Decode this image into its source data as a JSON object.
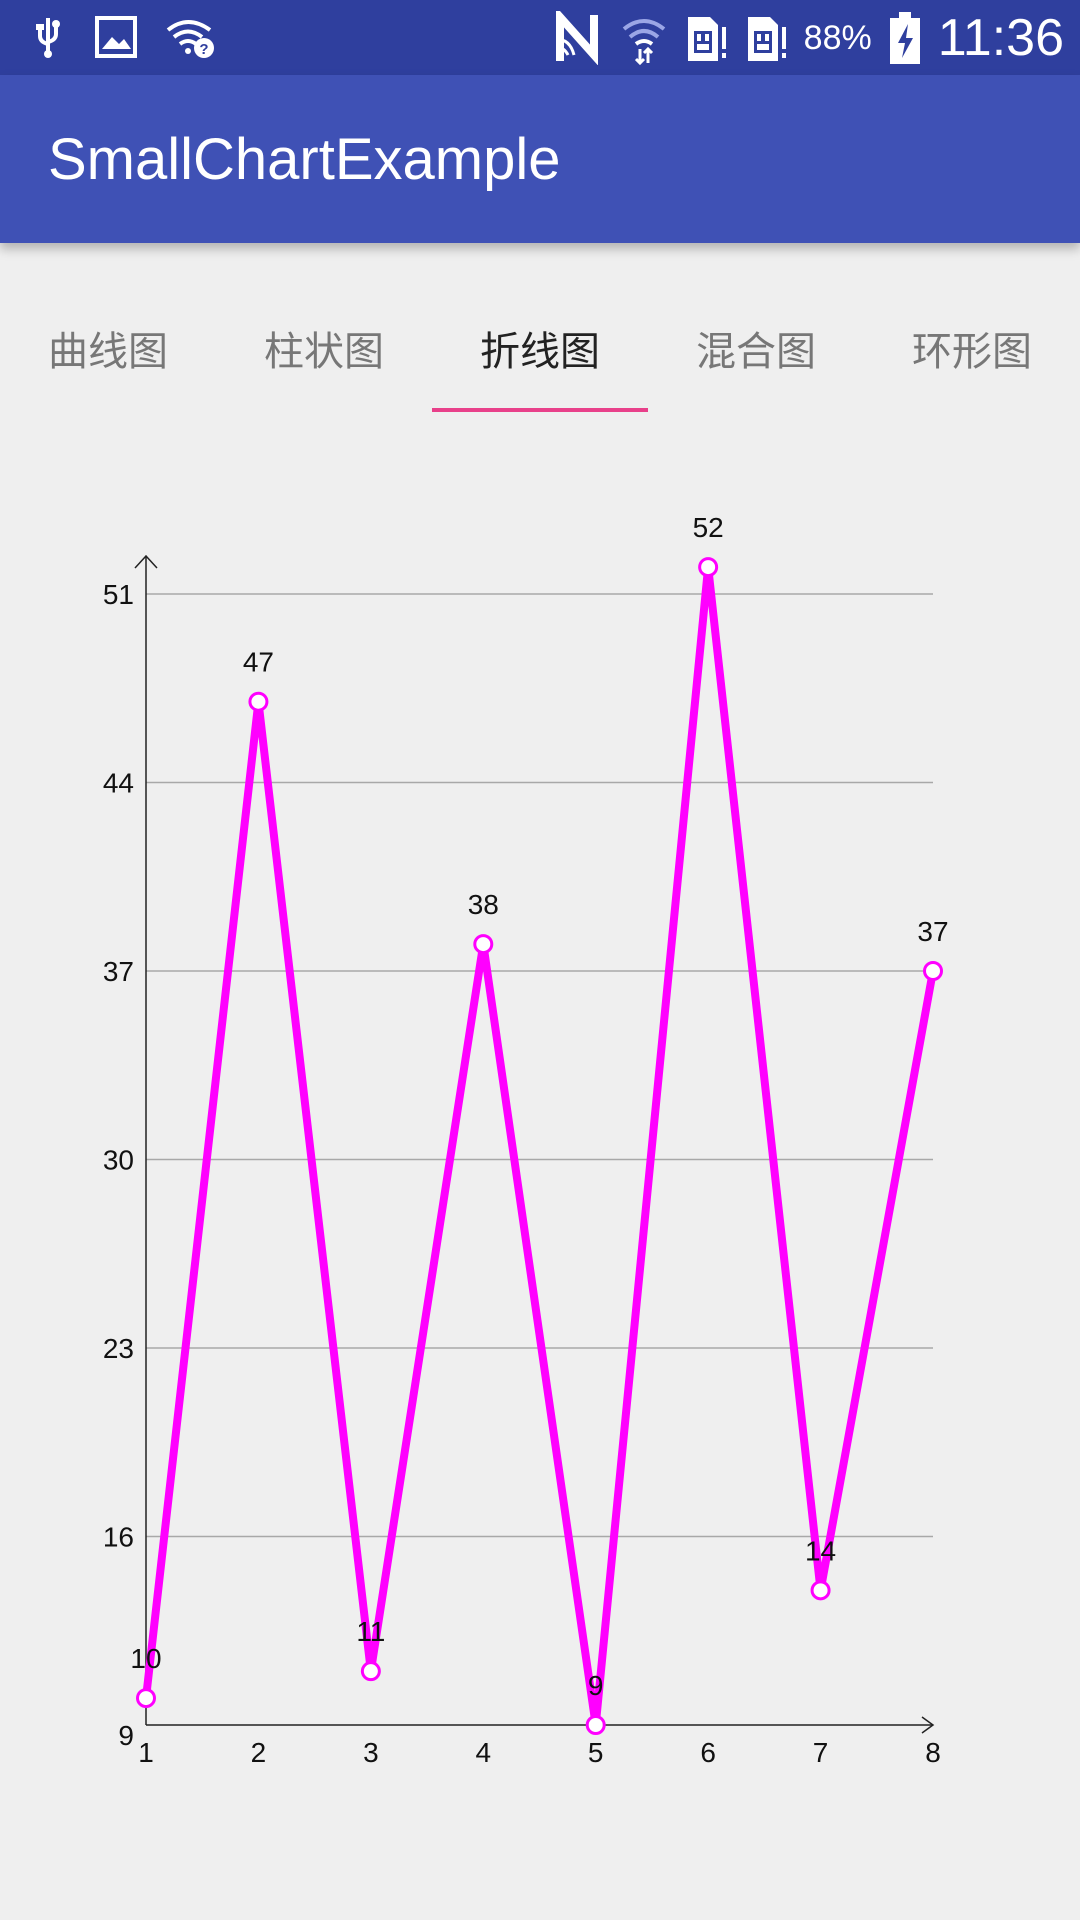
{
  "status_bar": {
    "battery": "88%",
    "time": "11:36",
    "icons": [
      "usb-icon",
      "image-icon",
      "wifi-question-icon",
      "nfc-icon",
      "wifi-icon",
      "sim1-icon",
      "sim2-icon",
      "battery-charging-icon"
    ]
  },
  "app_bar": {
    "title": "SmallChartExample"
  },
  "tabs": [
    {
      "label": "曲线图"
    },
    {
      "label": "柱状图"
    },
    {
      "label": "折线图"
    },
    {
      "label": "混合图"
    },
    {
      "label": "环形图"
    }
  ],
  "active_tab": 2,
  "colors": {
    "status_bar": "#2F3F9E",
    "app_bar": "#3F51B5",
    "tab_indicator": "#E8408A",
    "line": "#FF00FF",
    "grid": "#A8A8A8",
    "background": "#EFEFEF"
  },
  "chart_data": {
    "type": "line",
    "x": [
      1,
      2,
      3,
      4,
      5,
      6,
      7,
      8
    ],
    "values": [
      10,
      47,
      11,
      38,
      9,
      52,
      14,
      37
    ],
    "data_labels": [
      "10",
      "47",
      "11",
      "38",
      "9",
      "52",
      "14",
      "37"
    ],
    "x_ticks": [
      "1",
      "2",
      "3",
      "4",
      "5",
      "6",
      "7",
      "8"
    ],
    "y_ticks": [
      9,
      16,
      23,
      30,
      37,
      44,
      51
    ],
    "y_tick_labels": [
      "9",
      "16",
      "23",
      "30",
      "37",
      "44",
      "51"
    ],
    "xlim": [
      1,
      8
    ],
    "ylim": [
      9,
      51
    ],
    "grid": true,
    "markers": "hollow-circle"
  }
}
